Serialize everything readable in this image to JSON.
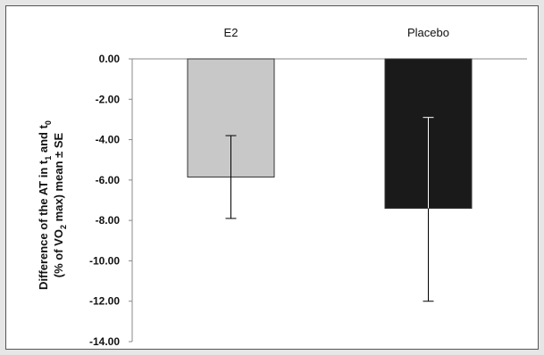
{
  "chart_data": {
    "type": "bar",
    "categories": [
      "E2",
      "Placebo"
    ],
    "values": [
      -5.85,
      -7.4
    ],
    "error_bars": [
      {
        "lower": -7.9,
        "upper": -3.8
      },
      {
        "lower": -12.0,
        "upper": -2.9
      }
    ],
    "bar_colors": [
      "#c8c8c8",
      "#1a1a1a"
    ],
    "error_bar_colors": [
      "#000000",
      "#000000"
    ],
    "ylim": [
      -14,
      0
    ],
    "yticks": [
      "0.00",
      "-2.00",
      "-4.00",
      "-6.00",
      "-8.00",
      "-10.00",
      "-12.00",
      "-14.00"
    ],
    "ylabel": {
      "line1_parts": [
        "Difference of the AT in t",
        "1",
        " and t",
        "0"
      ],
      "line2_parts": [
        "(% of VO",
        "2",
        " max) mean ± SE"
      ]
    },
    "grid": false,
    "legend": "none"
  }
}
